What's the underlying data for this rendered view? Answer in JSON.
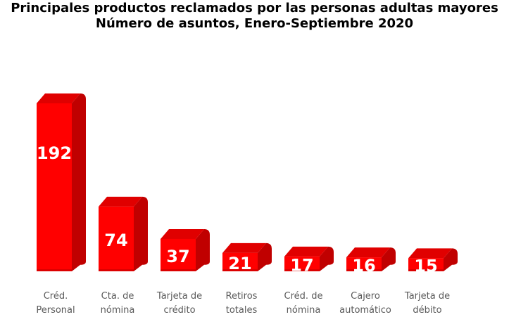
{
  "chart_data": {
    "type": "bar",
    "title": "Principales productos reclamados por las personas adultas mayores",
    "subtitle": "Número de asuntos, Enero-Septiembre 2020",
    "xlabel": "",
    "ylabel": "",
    "ylim": [
      0,
      192
    ],
    "categories": [
      [
        "Créd.",
        "Personal"
      ],
      [
        "Cta. de",
        "nómina"
      ],
      [
        "Tarjeta de",
        "crédito"
      ],
      [
        "Retiros",
        "totales"
      ],
      [
        "Créd. de",
        "nómina"
      ],
      [
        "Cajero",
        "automático"
      ],
      [
        "Tarjeta de",
        "débito"
      ]
    ],
    "values": [
      192,
      74,
      37,
      21,
      17,
      16,
      15
    ],
    "colors": {
      "front": "#ff0000",
      "side": "#c00000",
      "top": "#e00000",
      "label": "#ffffff",
      "category": "#595959"
    }
  }
}
